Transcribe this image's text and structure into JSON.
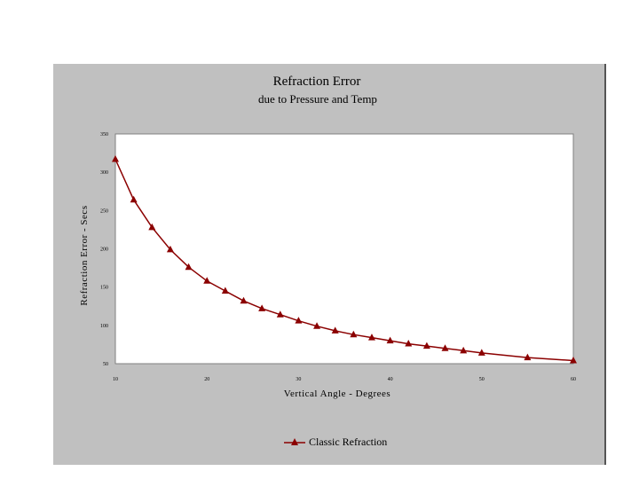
{
  "colors": {
    "series": "#8b0000",
    "panel": "#c0c0c0",
    "plot": "#ffffff"
  },
  "chart_data": {
    "type": "line",
    "title": "Refraction Error",
    "subtitle": "due to Pressure and Temp",
    "xlabel": "Vertical Angle - Degrees",
    "ylabel": "Refraction Error - Secs",
    "xlim": [
      10,
      60
    ],
    "ylim": [
      50,
      350
    ],
    "xticks": [
      "10",
      "20",
      "30",
      "40",
      "50",
      "60"
    ],
    "yticks": [
      "50",
      "100",
      "150",
      "200",
      "250",
      "300",
      "350"
    ],
    "grid": false,
    "legend_position": "bottom",
    "series": [
      {
        "name": "Classic Refraction",
        "marker": "triangle",
        "x": [
          10,
          12,
          14,
          16,
          18,
          20,
          22,
          24,
          26,
          28,
          30,
          32,
          34,
          36,
          38,
          40,
          42,
          44,
          46,
          48,
          50,
          55,
          60
        ],
        "y": [
          317,
          264,
          228,
          199,
          176,
          158,
          145,
          132,
          122,
          114,
          106,
          99,
          93,
          88,
          84,
          80,
          76,
          73,
          70,
          67,
          64,
          58,
          54
        ]
      }
    ]
  }
}
